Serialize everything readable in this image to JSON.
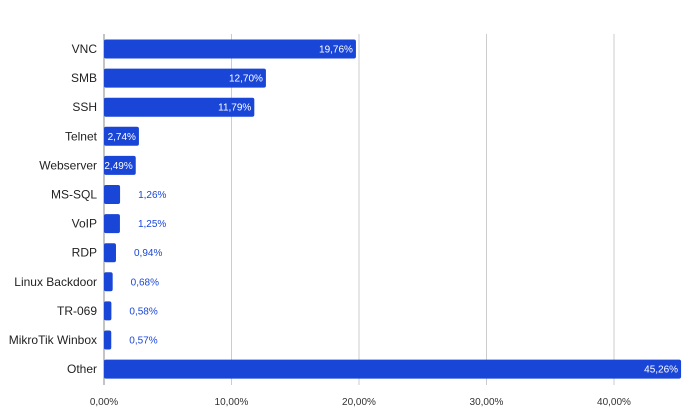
{
  "chart_data": {
    "type": "bar",
    "orientation": "horizontal",
    "categories": [
      "VNC",
      "SMB",
      "SSH",
      "Telnet",
      "Webserver",
      "MS-SQL",
      "VoIP",
      "RDP",
      "Linux Backdoor",
      "TR-069",
      "MikroTik Winbox",
      "Other"
    ],
    "values": [
      19.76,
      12.7,
      11.79,
      2.74,
      2.49,
      1.26,
      1.25,
      0.94,
      0.68,
      0.58,
      0.57,
      45.26
    ],
    "value_labels": [
      "19,76%",
      "12,70%",
      "11,79%",
      "2,74%",
      "2,49%",
      "1,26%",
      "1,25%",
      "0,94%",
      "0,68%",
      "0,58%",
      "0,57%",
      "45,26%"
    ],
    "x_ticks": [
      0,
      10,
      20,
      30,
      40
    ],
    "x_tick_labels": [
      "0,00%",
      "10,00%",
      "20,00%",
      "30,00%",
      "40,00%"
    ],
    "xlim": [
      0,
      45.5
    ],
    "grid": "vertical",
    "legend": "none",
    "title": "",
    "xlabel": "",
    "ylabel": "",
    "bar_color": "#1a46d8",
    "inside_label_color": "#ffffff",
    "outside_label_color": "#1a46d8",
    "grid_color": "#cccccc"
  }
}
